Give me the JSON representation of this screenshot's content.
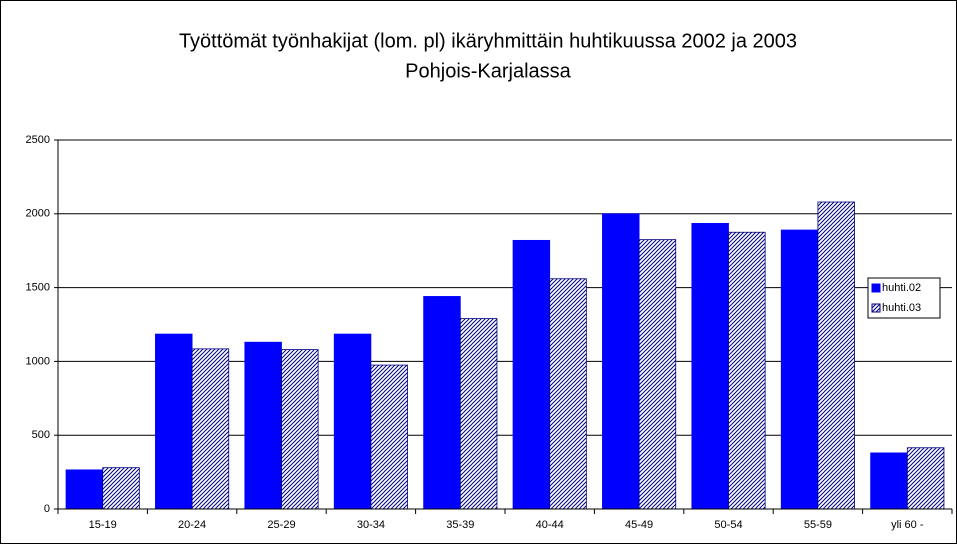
{
  "chart_data": {
    "type": "bar",
    "title": [
      "Työttömät työnhakijat (lom. pl) ikäryhmittäin huhtikuussa 2002 ja 2003",
      "Pohjois-Karjalassa"
    ],
    "categories": [
      "15-19",
      "20-24",
      "25-29",
      "30-34",
      "35-39",
      "40-44",
      "45-49",
      "50-54",
      "55-59",
      "yli 60 -"
    ],
    "series": [
      {
        "name": "huhti.02",
        "color": "#0000ff",
        "values": [
          265,
          1185,
          1130,
          1185,
          1440,
          1820,
          2000,
          1935,
          1890,
          380
        ]
      },
      {
        "name": "huhti.03",
        "color": "#000080",
        "hatched": true,
        "values": [
          280,
          1085,
          1080,
          975,
          1290,
          1560,
          1825,
          1875,
          2080,
          415
        ]
      }
    ],
    "ylim": [
      0,
      2500
    ],
    "yticks": [
      0,
      500,
      1000,
      1500,
      2000,
      2500
    ],
    "grid": true,
    "legend": "right"
  }
}
